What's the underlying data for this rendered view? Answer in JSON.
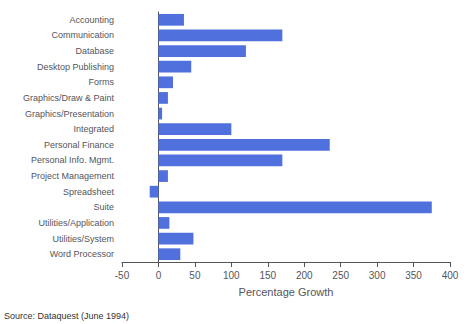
{
  "chart_data": {
    "type": "bar",
    "orientation": "horizontal",
    "categories": [
      "Accounting",
      "Communication",
      "Database",
      "Desktop Publishing",
      "Forms",
      "Graphics/Draw & Paint",
      "Graphics/Presentation",
      "Integrated",
      "Personal Finance",
      "Personal Info. Mgmt.",
      "Project Management",
      "Spreadsheet",
      "Suite",
      "Utilities/Application",
      "Utilities/System",
      "Word Processor"
    ],
    "values": [
      35,
      170,
      120,
      45,
      20,
      13,
      5,
      100,
      235,
      170,
      13,
      -12,
      375,
      15,
      48,
      30
    ],
    "xlabel": "Percentage Growth",
    "xlim": [
      -50,
      400
    ],
    "xticks": [
      -50,
      0,
      50,
      100,
      150,
      200,
      250,
      300,
      350,
      400
    ],
    "grid": false,
    "annotation": "Source: Dataquest (June 1994)"
  }
}
